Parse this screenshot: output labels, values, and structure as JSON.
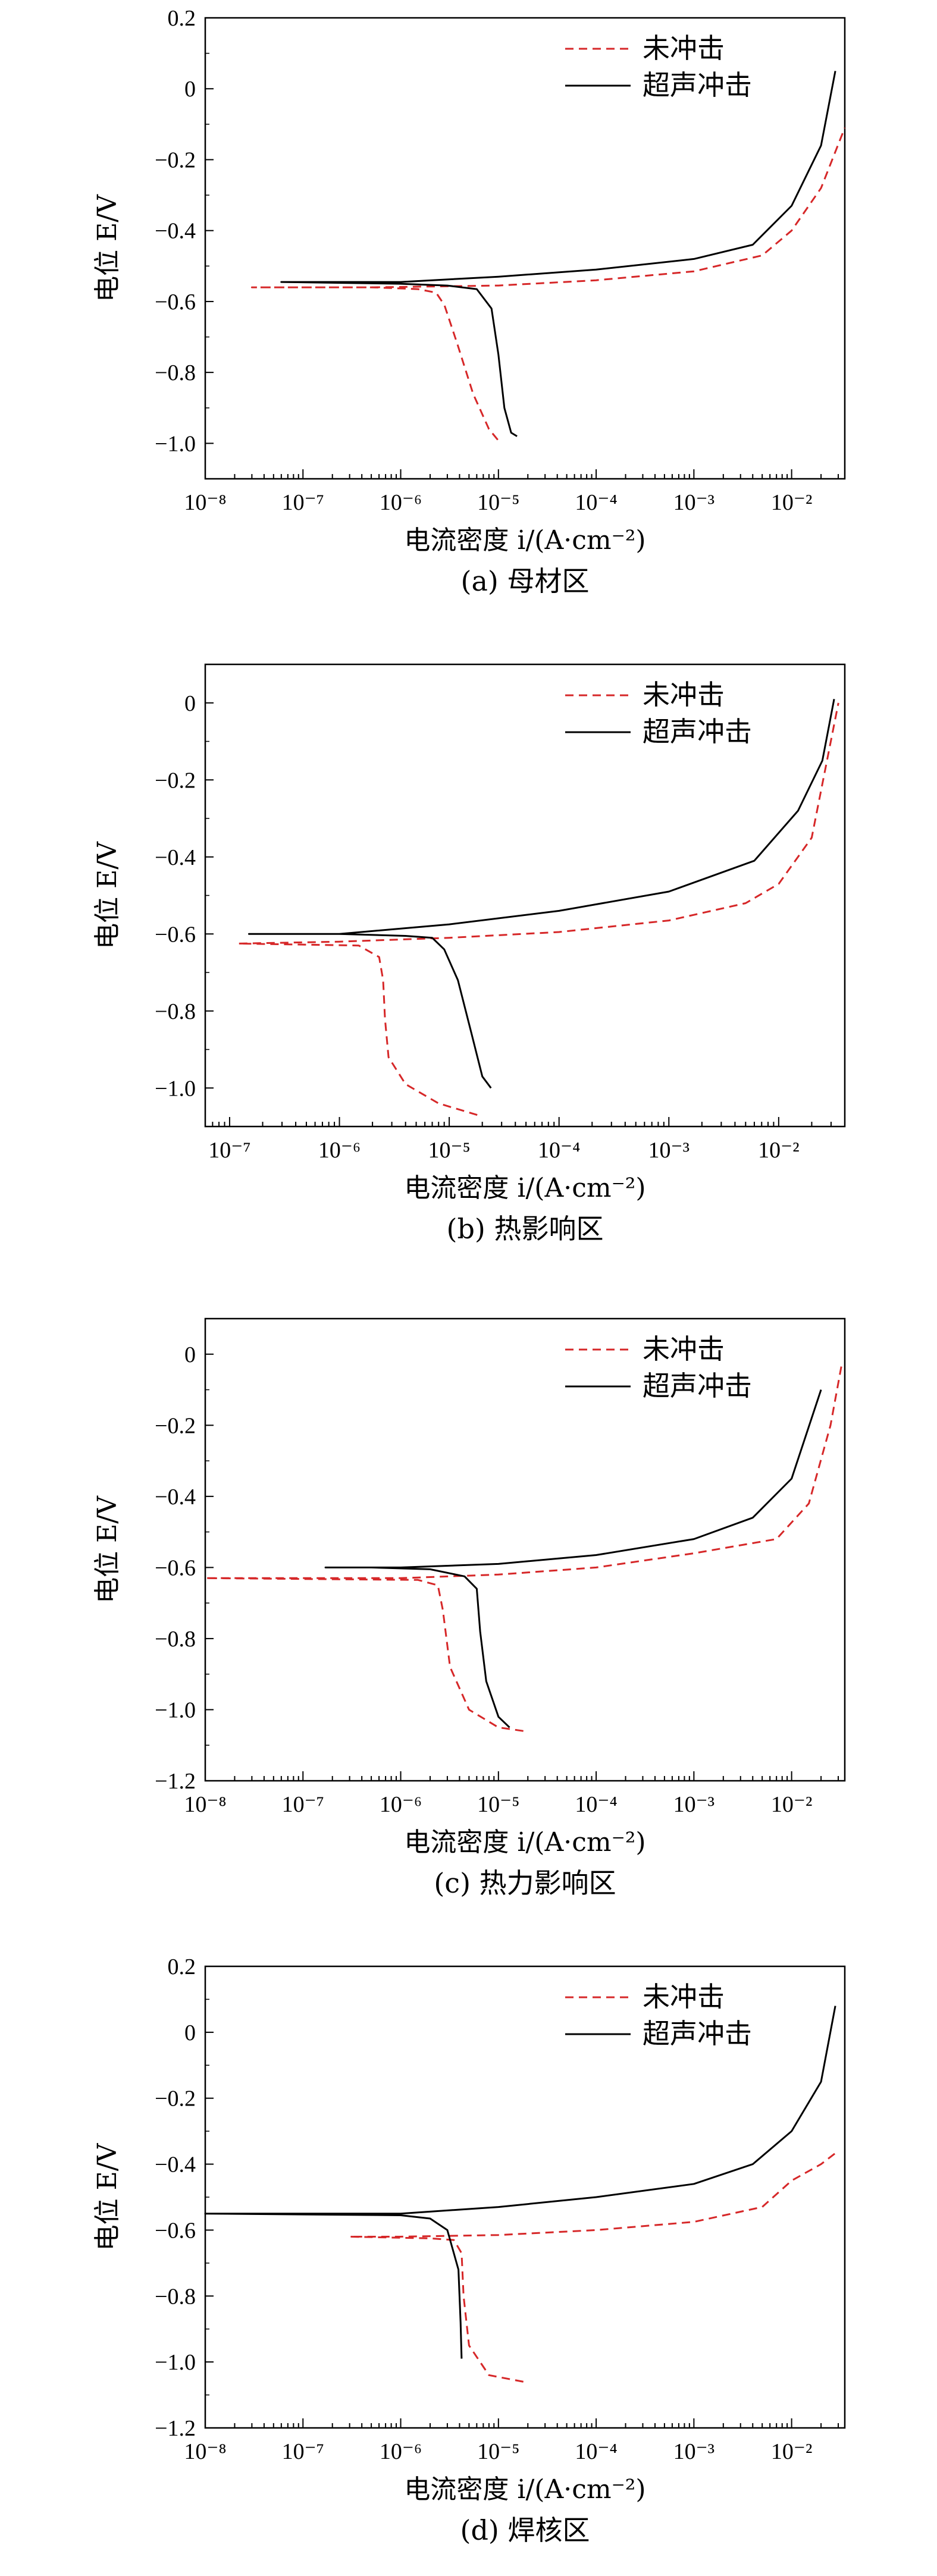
{
  "colors": {
    "untreated": "#d62728",
    "ultrasonic": "#000000"
  },
  "legend": {
    "untreated": "未冲击",
    "ultrasonic": "超声冲击"
  },
  "xlabel": "电流密度 i/(A·cm⁻²)",
  "ylabel": "电位 E/V",
  "chart_data": [
    {
      "type": "line",
      "caption": "(a) 母材区",
      "x_scale": "log",
      "xlim": [
        1e-08,
        0.035
      ],
      "ylim": [
        -1.1,
        0.2
      ],
      "x_ticks": [
        1e-08,
        1e-07,
        1e-06,
        1e-05,
        0.0001,
        0.001,
        0.01
      ],
      "y_ticks": [
        0.2,
        0,
        -0.2,
        -0.4,
        -0.6,
        -0.8,
        -1.0
      ],
      "series": [
        {
          "name": "未冲击",
          "style": "dashed",
          "points": [
            [
              9.85e-06,
              -0.99
            ],
            [
              8e-06,
              -0.96
            ],
            [
              5.5e-06,
              -0.86
            ],
            [
              3.8e-06,
              -0.72
            ],
            [
              2.8e-06,
              -0.61
            ],
            [
              2.3e-06,
              -0.575
            ],
            [
              1.5e-06,
              -0.565
            ],
            [
              5e-07,
              -0.56
            ],
            [
              3e-08,
              -0.56
            ],
            [
              5e-07,
              -0.56
            ],
            [
              1e-05,
              -0.555
            ],
            [
              0.0001,
              -0.54
            ],
            [
              0.001,
              -0.515
            ],
            [
              0.005,
              -0.47
            ],
            [
              0.01,
              -0.4
            ],
            [
              0.02,
              -0.28
            ],
            [
              0.035,
              -0.11
            ]
          ]
        },
        {
          "name": "超声冲击",
          "style": "solid",
          "points": [
            [
              1.55e-05,
              -0.98
            ],
            [
              1.35e-05,
              -0.97
            ],
            [
              1.15e-05,
              -0.9
            ],
            [
              1e-05,
              -0.75
            ],
            [
              8.5e-06,
              -0.62
            ],
            [
              6e-06,
              -0.565
            ],
            [
              3e-06,
              -0.555
            ],
            [
              1e-06,
              -0.55
            ],
            [
              6e-08,
              -0.545
            ],
            [
              1e-06,
              -0.545
            ],
            [
              1e-05,
              -0.53
            ],
            [
              0.0001,
              -0.51
            ],
            [
              0.001,
              -0.48
            ],
            [
              0.004,
              -0.44
            ],
            [
              0.01,
              -0.33
            ],
            [
              0.02,
              -0.16
            ],
            [
              0.028,
              0.05
            ]
          ]
        }
      ]
    },
    {
      "type": "line",
      "caption": "(b) 热影响区",
      "x_scale": "log",
      "xlim": [
        6e-08,
        0.04
      ],
      "ylim": [
        -1.1,
        0.1
      ],
      "x_ticks": [
        1e-07,
        1e-06,
        1e-05,
        0.0001,
        0.001,
        0.01
      ],
      "y_ticks": [
        0,
        -0.2,
        -0.4,
        -0.6,
        -0.8,
        -1.0
      ],
      "series": [
        {
          "name": "未冲击",
          "style": "dashed",
          "points": [
            [
              1.8e-05,
              -1.07
            ],
            [
              8e-06,
              -1.04
            ],
            [
              4e-06,
              -0.99
            ],
            [
              2.8e-06,
              -0.92
            ],
            [
              2.6e-06,
              -0.82
            ],
            [
              2.5e-06,
              -0.72
            ],
            [
              2.3e-06,
              -0.66
            ],
            [
              1.5e-06,
              -0.63
            ],
            [
              1.2e-07,
              -0.625
            ],
            [
              1e-06,
              -0.62
            ],
            [
              1e-05,
              -0.61
            ],
            [
              0.0001,
              -0.595
            ],
            [
              0.001,
              -0.565
            ],
            [
              0.005,
              -0.52
            ],
            [
              0.01,
              -0.47
            ],
            [
              0.02,
              -0.35
            ],
            [
              0.035,
              0.0
            ]
          ]
        },
        {
          "name": "超声冲击",
          "style": "solid",
          "points": [
            [
              2.4e-05,
              -1.0
            ],
            [
              2e-05,
              -0.97
            ],
            [
              1.6e-05,
              -0.86
            ],
            [
              1.2e-05,
              -0.72
            ],
            [
              9e-06,
              -0.64
            ],
            [
              7e-06,
              -0.61
            ],
            [
              4e-06,
              -0.605
            ],
            [
              1e-06,
              -0.6
            ],
            [
              1.5e-07,
              -0.6
            ],
            [
              1e-06,
              -0.6
            ],
            [
              1e-05,
              -0.575
            ],
            [
              0.0001,
              -0.54
            ],
            [
              0.001,
              -0.49
            ],
            [
              0.006,
              -0.41
            ],
            [
              0.015,
              -0.28
            ],
            [
              0.025,
              -0.15
            ],
            [
              0.032,
              0.01
            ]
          ]
        }
      ]
    },
    {
      "type": "line",
      "caption": "(c) 热力影响区",
      "x_scale": "log",
      "xlim": [
        1e-08,
        0.035
      ],
      "ylim": [
        -1.2,
        0.1
      ],
      "x_ticks": [
        1e-08,
        1e-07,
        1e-06,
        1e-05,
        0.0001,
        0.001,
        0.01
      ],
      "y_ticks": [
        0,
        -0.2,
        -0.4,
        -0.6,
        -0.8,
        -1.0,
        -1.2
      ],
      "series": [
        {
          "name": "未冲击",
          "style": "dashed",
          "points": [
            [
              1.8e-05,
              -1.06
            ],
            [
              1e-05,
              -1.05
            ],
            [
              5e-06,
              -1.0
            ],
            [
              3.2e-06,
              -0.88
            ],
            [
              2.7e-06,
              -0.72
            ],
            [
              2.4e-06,
              -0.65
            ],
            [
              1.5e-06,
              -0.635
            ],
            [
              1e-08,
              -0.63
            ],
            [
              1e-06,
              -0.63
            ],
            [
              1e-05,
              -0.62
            ],
            [
              0.0001,
              -0.6
            ],
            [
              0.001,
              -0.56
            ],
            [
              0.007,
              -0.52
            ],
            [
              0.015,
              -0.42
            ],
            [
              0.025,
              -0.2
            ],
            [
              0.033,
              -0.02
            ]
          ]
        },
        {
          "name": "超声冲击",
          "style": "solid",
          "points": [
            [
              1.3e-05,
              -1.05
            ],
            [
              1e-05,
              -1.02
            ],
            [
              7.5e-06,
              -0.92
            ],
            [
              6.5e-06,
              -0.78
            ],
            [
              6e-06,
              -0.66
            ],
            [
              4.5e-06,
              -0.625
            ],
            [
              2e-06,
              -0.605
            ],
            [
              5e-07,
              -0.6
            ],
            [
              1.7e-07,
              -0.6
            ],
            [
              1e-06,
              -0.6
            ],
            [
              1e-05,
              -0.59
            ],
            [
              0.0001,
              -0.565
            ],
            [
              0.001,
              -0.52
            ],
            [
              0.004,
              -0.46
            ],
            [
              0.01,
              -0.35
            ],
            [
              0.02,
              -0.1
            ]
          ]
        }
      ]
    },
    {
      "type": "line",
      "caption": "(d) 焊核区",
      "x_scale": "log",
      "xlim": [
        1e-08,
        0.035
      ],
      "ylim": [
        -1.2,
        0.2
      ],
      "x_ticks": [
        1e-08,
        1e-07,
        1e-06,
        1e-05,
        0.0001,
        0.001,
        0.01
      ],
      "y_ticks": [
        0.2,
        0,
        -0.2,
        -0.4,
        -0.6,
        -0.8,
        -1.0,
        -1.2
      ],
      "series": [
        {
          "name": "未冲击",
          "style": "dashed",
          "points": [
            [
              1.8e-05,
              -1.06
            ],
            [
              8e-06,
              -1.04
            ],
            [
              5e-06,
              -0.95
            ],
            [
              4.4e-06,
              -0.8
            ],
            [
              4.2e-06,
              -0.67
            ],
            [
              3.5e-06,
              -0.63
            ],
            [
              2e-06,
              -0.625
            ],
            [
              3e-07,
              -0.62
            ],
            [
              1e-06,
              -0.62
            ],
            [
              1e-05,
              -0.615
            ],
            [
              0.0001,
              -0.6
            ],
            [
              0.001,
              -0.575
            ],
            [
              0.005,
              -0.53
            ],
            [
              0.01,
              -0.45
            ],
            [
              0.02,
              -0.4
            ],
            [
              0.03,
              -0.36
            ]
          ]
        },
        {
          "name": "超声冲击",
          "style": "solid",
          "points": [
            [
              4.2e-06,
              -0.99
            ],
            [
              4.1e-06,
              -0.88
            ],
            [
              3.9e-06,
              -0.72
            ],
            [
              3e-06,
              -0.6
            ],
            [
              2e-06,
              -0.565
            ],
            [
              1e-06,
              -0.555
            ],
            [
              1e-08,
              -0.55
            ],
            [
              1e-06,
              -0.55
            ],
            [
              1e-05,
              -0.53
            ],
            [
              0.0001,
              -0.5
            ],
            [
              0.001,
              -0.46
            ],
            [
              0.004,
              -0.4
            ],
            [
              0.01,
              -0.3
            ],
            [
              0.02,
              -0.15
            ],
            [
              0.028,
              0.08
            ]
          ]
        }
      ]
    }
  ]
}
